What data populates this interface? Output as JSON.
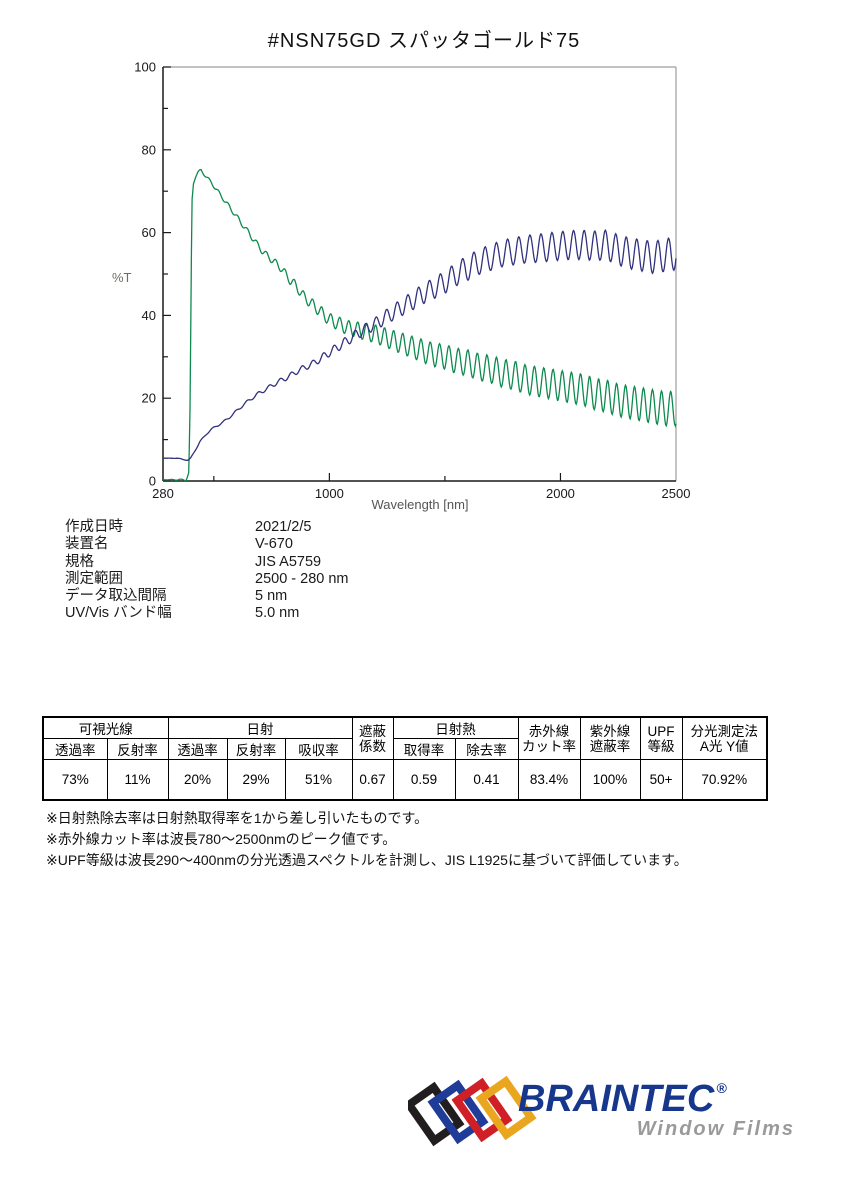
{
  "page": {
    "title": "#NSN75GD  スパッタゴールド75"
  },
  "chart_data": {
    "type": "line",
    "xlabel": "Wavelength [nm]",
    "ylabel": "%T",
    "xlim": [
      280,
      2500
    ],
    "ylim": [
      0,
      100
    ],
    "x_ticks_labeled": [
      280,
      1000,
      2000,
      2500
    ],
    "x_ticks_minor": [
      500,
      1500
    ],
    "y_ticks_labeled": [
      0,
      20,
      40,
      60,
      80,
      100
    ],
    "y_ticks_minor": [
      10,
      30,
      50,
      70,
      90
    ],
    "grid": false,
    "frame_colors": {
      "axis": "#1a1a1a",
      "top_right": "#9e9e9e"
    },
    "series": [
      {
        "name": "transmittance-green",
        "color": "#0e8a4e",
        "points": [
          [
            280,
            0.3
          ],
          [
            380,
            0.3
          ],
          [
            392,
            2
          ],
          [
            398,
            20
          ],
          [
            402,
            50
          ],
          [
            406,
            68
          ],
          [
            412,
            72
          ],
          [
            420,
            73.5
          ],
          [
            430,
            74.5
          ],
          [
            445,
            75
          ],
          [
            460,
            74
          ],
          [
            475,
            73
          ],
          [
            490,
            72
          ],
          [
            510,
            70.5
          ],
          [
            530,
            69
          ],
          [
            550,
            67.5
          ],
          [
            570,
            66
          ],
          [
            590,
            64.5
          ],
          [
            610,
            63
          ],
          [
            630,
            61.5
          ],
          [
            650,
            60
          ],
          [
            670,
            58.5
          ],
          [
            690,
            57
          ],
          [
            710,
            55.5
          ],
          [
            730,
            54.5
          ],
          [
            750,
            53.5
          ],
          [
            770,
            52.5
          ],
          [
            790,
            51.5
          ],
          [
            810,
            50
          ],
          [
            830,
            48.5
          ],
          [
            850,
            47.5
          ],
          [
            870,
            46
          ],
          [
            890,
            44.5
          ],
          [
            910,
            43.5
          ],
          [
            940,
            42
          ],
          [
            970,
            40.5
          ],
          [
            1000,
            39
          ],
          [
            1040,
            38
          ],
          [
            1080,
            37
          ],
          [
            1120,
            36.5
          ],
          [
            1160,
            36
          ],
          [
            1200,
            35.5
          ],
          [
            1250,
            34.5
          ],
          [
            1300,
            33.5
          ],
          [
            1350,
            32.5
          ],
          [
            1400,
            31.5
          ],
          [
            1450,
            30.5
          ],
          [
            1500,
            30
          ],
          [
            1550,
            29
          ],
          [
            1600,
            28.5
          ],
          [
            1650,
            27.5
          ],
          [
            1700,
            27
          ],
          [
            1750,
            26
          ],
          [
            1800,
            25.5
          ],
          [
            1850,
            24.5
          ],
          [
            1900,
            24
          ],
          [
            1950,
            23.5
          ],
          [
            2000,
            23
          ],
          [
            2050,
            22.5
          ],
          [
            2100,
            22
          ],
          [
            2150,
            21
          ],
          [
            2200,
            20.5
          ],
          [
            2250,
            19.5
          ],
          [
            2300,
            19
          ],
          [
            2350,
            18.5
          ],
          [
            2400,
            18
          ],
          [
            2450,
            17.5
          ],
          [
            2500,
            17.5
          ]
        ],
        "oscillation": {
          "period_nm": 40,
          "phase": 1.2,
          "amplitude_profile": [
            [
              280,
              0
            ],
            [
              420,
              0.3
            ],
            [
              700,
              0.7
            ],
            [
              1000,
              1.5
            ],
            [
              1200,
              2.2
            ],
            [
              1500,
              3.0
            ],
            [
              1800,
              3.5
            ],
            [
              2100,
              3.8
            ],
            [
              2500,
              4.2
            ]
          ]
        }
      },
      {
        "name": "reflectance-navy",
        "color": "#31317e",
        "points": [
          [
            280,
            5.5
          ],
          [
            310,
            5.5
          ],
          [
            340,
            5.5
          ],
          [
            370,
            5.2
          ],
          [
            390,
            5
          ],
          [
            400,
            5.5
          ],
          [
            410,
            6.5
          ],
          [
            425,
            8
          ],
          [
            440,
            9.5
          ],
          [
            455,
            10.5
          ],
          [
            470,
            11.5
          ],
          [
            490,
            12.5
          ],
          [
            510,
            13.2
          ],
          [
            540,
            14.2
          ],
          [
            570,
            15.5
          ],
          [
            600,
            17
          ],
          [
            630,
            18.5
          ],
          [
            660,
            19.8
          ],
          [
            690,
            21
          ],
          [
            720,
            22
          ],
          [
            750,
            23
          ],
          [
            780,
            24
          ],
          [
            810,
            24.8
          ],
          [
            840,
            25.8
          ],
          [
            870,
            26.8
          ],
          [
            900,
            27.6
          ],
          [
            930,
            28.4
          ],
          [
            960,
            29.5
          ],
          [
            1000,
            31
          ],
          [
            1040,
            32.5
          ],
          [
            1080,
            34
          ],
          [
            1120,
            35.5
          ],
          [
            1160,
            36.8
          ],
          [
            1200,
            38
          ],
          [
            1250,
            39.8
          ],
          [
            1300,
            41.5
          ],
          [
            1350,
            43.2
          ],
          [
            1400,
            45
          ],
          [
            1450,
            46.5
          ],
          [
            1500,
            48
          ],
          [
            1550,
            50
          ],
          [
            1600,
            51.5
          ],
          [
            1650,
            53
          ],
          [
            1700,
            54
          ],
          [
            1750,
            55
          ],
          [
            1800,
            55.5
          ],
          [
            1850,
            56
          ],
          [
            1900,
            56.2
          ],
          [
            1950,
            56.5
          ],
          [
            2000,
            56.8
          ],
          [
            2050,
            57
          ],
          [
            2100,
            57
          ],
          [
            2150,
            56.8
          ],
          [
            2200,
            57
          ],
          [
            2250,
            55.8
          ],
          [
            2300,
            55
          ],
          [
            2350,
            54.5
          ],
          [
            2400,
            54
          ],
          [
            2450,
            54.5
          ],
          [
            2500,
            55
          ]
        ],
        "oscillation": {
          "period_nm": 47,
          "phase": 3.9,
          "amplitude_profile": [
            [
              280,
              0
            ],
            [
              600,
              0.3
            ],
            [
              900,
              0.7
            ],
            [
              1150,
              1.3
            ],
            [
              1350,
              2.2
            ],
            [
              1600,
              3.0
            ],
            [
              1900,
              3.4
            ],
            [
              2200,
              3.6
            ],
            [
              2500,
              4.0
            ]
          ]
        }
      }
    ]
  },
  "metadata": {
    "rows": [
      {
        "label": "作成日時",
        "value": "2021/2/5"
      },
      {
        "label": "装置名",
        "value": "V-670"
      },
      {
        "label": "規格",
        "value": "JIS A5759"
      },
      {
        "label": "測定範囲",
        "value": "2500 - 280 nm"
      },
      {
        "label": "データ取込間隔",
        "value": "5 nm"
      },
      {
        "label": "UV/Vis バンド幅",
        "value": "5.0 nm"
      }
    ]
  },
  "table": {
    "group_row": [
      {
        "text": "可視光線"
      },
      {
        "text": "日射"
      },
      {
        "lines": [
          "遮蔽",
          "係数"
        ]
      },
      {
        "text": "日射熱"
      },
      {
        "lines": [
          "赤外線",
          "カット率"
        ]
      },
      {
        "lines": [
          "紫外線",
          "遮蔽率"
        ]
      },
      {
        "lines": [
          "UPF",
          "等級"
        ]
      },
      {
        "lines": [
          "分光測定法",
          "A光 Y値"
        ]
      }
    ],
    "sub_row": [
      "透過率",
      "反射率",
      "透過率",
      "反射率",
      "吸収率",
      "取得率",
      "除去率"
    ],
    "values": [
      "73%",
      "11%",
      "20%",
      "29%",
      "51%",
      "0.67",
      "0.59",
      "0.41",
      "83.4%",
      "100%",
      "50+",
      "70.92%"
    ]
  },
  "footnotes": [
    "※日射熱除去率は日射熱取得率を1から差し引いたものです。",
    "※赤外線カット率は波長780～2500nmのピーク値です。",
    "※UPF等級は波長290～400nmの分光透過スペクトルを計測し、JIS L1925に基づいて評価しています。"
  ],
  "logo": {
    "brand": "BRAINTEC",
    "registered": "®",
    "subtitle": "Window Films",
    "brand_color": "#17378c",
    "subtitle_color": "#9a9a9a",
    "diamond_colors": [
      "#221e1f",
      "#1e3c98",
      "#d01f26",
      "#eaa61f"
    ]
  }
}
